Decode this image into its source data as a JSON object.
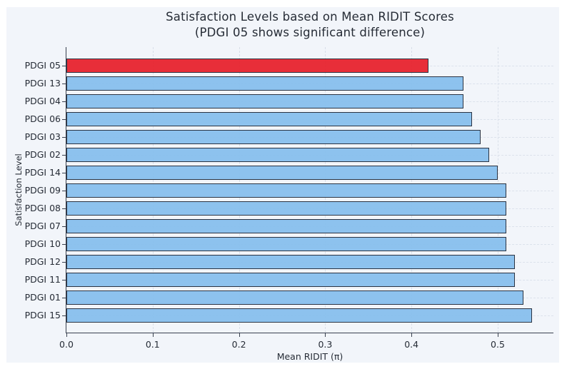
{
  "page": {
    "background": "#ffffff",
    "figure_background": "#f2f5fa"
  },
  "chart_data": {
    "type": "bar",
    "orientation": "horizontal",
    "title": "Satisfaction Levels based on Mean RIDIT Scores",
    "subtitle": "(PDGI 05 shows significant difference)",
    "xlabel": "Mean RIDIT (π)",
    "ylabel": "Satisfaction Level",
    "categories": [
      "PDGI 05",
      "PDGI 13",
      "PDGI 04",
      "PDGI 06",
      "PDGI 03",
      "PDGI 02",
      "PDGI 14",
      "PDGI 09",
      "PDGI 08",
      "PDGI 07",
      "PDGI 10",
      "PDGI 12",
      "PDGI 11",
      "PDGI 01",
      "PDGI 15"
    ],
    "values": [
      0.42,
      0.46,
      0.46,
      0.47,
      0.48,
      0.49,
      0.5,
      0.51,
      0.51,
      0.51,
      0.51,
      0.52,
      0.52,
      0.53,
      0.54
    ],
    "highlighted_category": "PDGI 05",
    "x_ticks": [
      0.0,
      0.1,
      0.2,
      0.3,
      0.4,
      0.5
    ],
    "x_tick_labels": [
      "0.0",
      "0.1",
      "0.2",
      "0.3",
      "0.4",
      "0.5"
    ],
    "xlim": [
      0,
      0.565
    ],
    "grid": true,
    "legend": false,
    "colors": {
      "bar": "#86bfee",
      "highlight": "#e8202b",
      "bar_edge": "#1c2636",
      "grid": "#d9dfe9",
      "row_grid": "#dce2ec",
      "spine": "#39414f",
      "text": "#262c36"
    }
  }
}
